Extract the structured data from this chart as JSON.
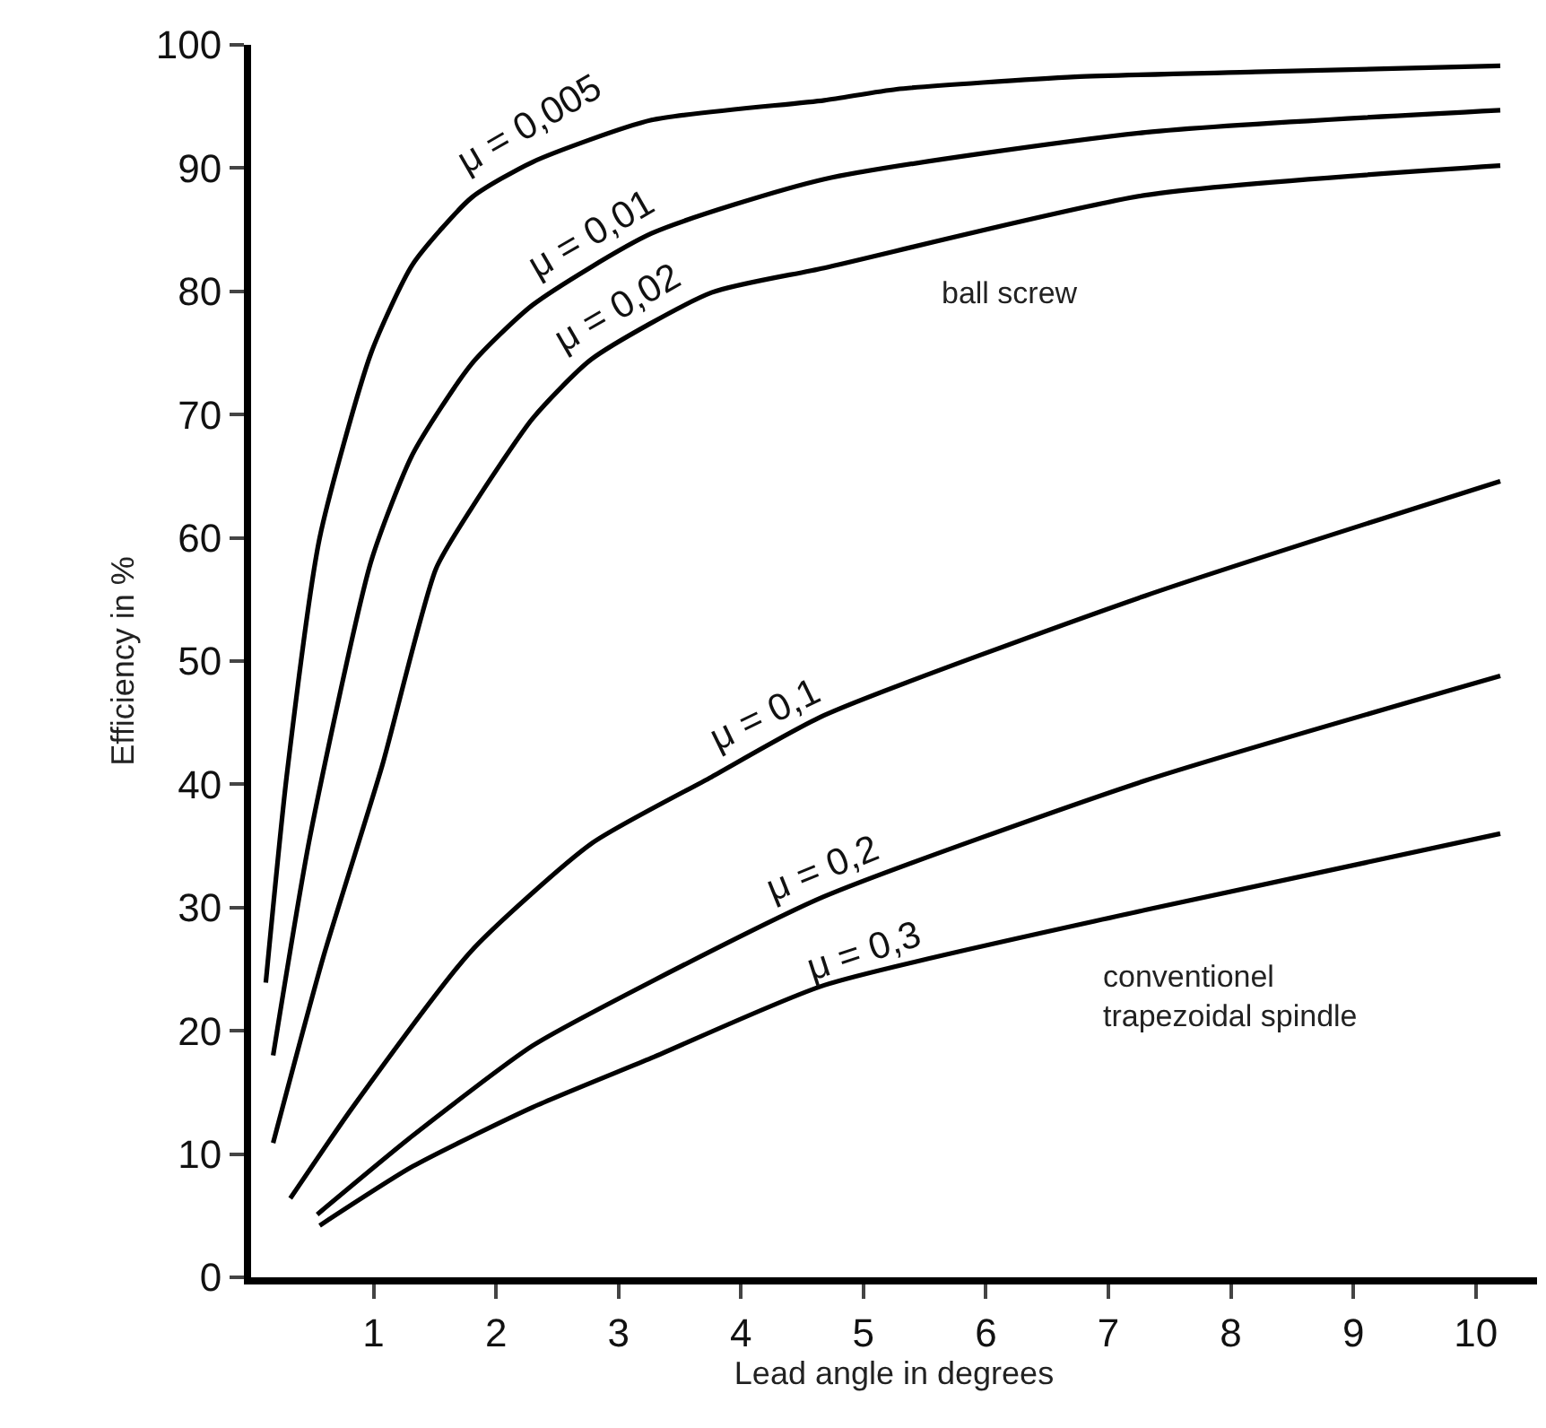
{
  "chart_data": {
    "type": "line",
    "xlabel": "Lead angle in degrees",
    "ylabel": "Efficiency in %",
    "xlim": [
      0,
      10.5
    ],
    "xticks": [
      1,
      2,
      3,
      4,
      5,
      6,
      7,
      8,
      9,
      10
    ],
    "ylim": [
      0,
      100
    ],
    "yticks": [
      0,
      10,
      20,
      30,
      40,
      50,
      60,
      70,
      80,
      90,
      100
    ],
    "legend": false,
    "marker": "none",
    "line_style": "solid",
    "series": [
      {
        "name": "μ = 0,005",
        "color": "#000000",
        "x": [
          0.12,
          0.29,
          0.56,
          0.98,
          1.32,
          1.8,
          2.3,
          3.27,
          4.68,
          5.27,
          6.73,
          8.2,
          10.2
        ],
        "values": [
          23.9,
          40.6,
          60,
          75,
          82.2,
          87.6,
          90.5,
          93.9,
          95.5,
          96.4,
          97.4,
          97.8,
          98.3
        ]
      },
      {
        "name": "μ = 0,01",
        "color": "#000000",
        "x": [
          0.18,
          0.48,
          0.98,
          1.32,
          1.8,
          2.3,
          3.27,
          4.68,
          7.3,
          10.2
        ],
        "values": [
          18,
          35.7,
          58.1,
          66.8,
          74.1,
          78.9,
          84.7,
          89.1,
          92.9,
          94.7
        ]
      },
      {
        "name": "μ = 0,02",
        "color": "#000000",
        "x": [
          0.18,
          0.59,
          1.07,
          1.51,
          1.8,
          2.3,
          2.78,
          3.76,
          4.68,
          7.3,
          10.2
        ],
        "values": [
          10.9,
          26,
          41.5,
          57.5,
          62.4,
          69.7,
          74.5,
          79.9,
          81.9,
          87.8,
          90.2
        ]
      },
      {
        "name": "μ = 0,1",
        "color": "#000000",
        "x": [
          0.32,
          0.83,
          1.8,
          2.78,
          3.76,
          4.68,
          7.3,
          10.2
        ],
        "values": [
          6.4,
          13.8,
          26.5,
          35.2,
          40.6,
          45.6,
          55.3,
          64.6
        ]
      },
      {
        "name": "μ = 0,2",
        "color": "#000000",
        "x": [
          0.54,
          1.32,
          2.3,
          3.27,
          4.68,
          7.3,
          10.2
        ],
        "values": [
          5.1,
          11.5,
          18.8,
          24,
          30.9,
          40.3,
          48.8
        ]
      },
      {
        "name": "μ = 0,3",
        "color": "#000000",
        "x": [
          0.56,
          1.32,
          2.3,
          3.27,
          4.68,
          7.3,
          10.2
        ],
        "values": [
          4.2,
          9,
          13.8,
          17.8,
          23.7,
          29.8,
          36
        ]
      }
    ],
    "annotations": [
      "ball screw",
      "conventionel\ntrapezoidal spindle"
    ]
  }
}
